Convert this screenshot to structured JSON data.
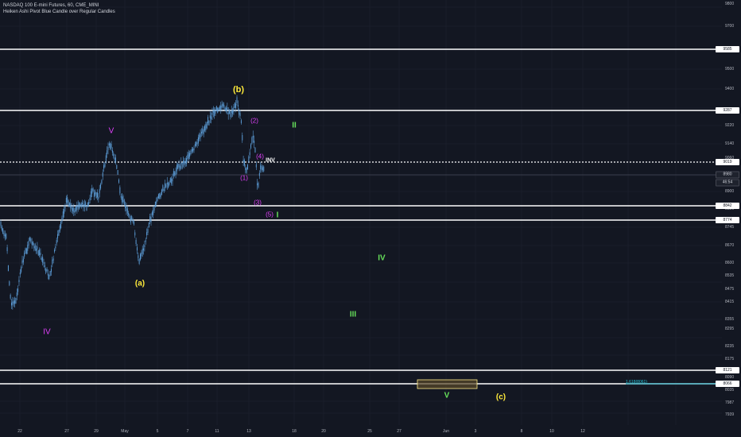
{
  "chart": {
    "symbol_line": "NASDAQ 100 E-mini Futures, 60, CME_MINI",
    "indicator_line": "Heiken Ashi Pivot Blue Candle over Regular Candles"
  },
  "colors": {
    "background": "#131722",
    "candle": "#5b9bd5",
    "grid": "#1f2430",
    "horizontal_line": "#ffffff",
    "magenta": "#e040fb",
    "green": "#66e05a",
    "yellow": "#ffeb3b",
    "fib": "#26c6da",
    "box_fill": "#5a4a2a",
    "box_stroke": "#ffeb8a"
  },
  "y_axis": {
    "ticks": [
      "9800",
      "9700",
      "9500",
      "9400",
      "9220",
      "9140",
      "9060",
      "8900",
      "8820",
      "8745",
      "8670",
      "8600",
      "8535",
      "8475",
      "8415",
      "8355",
      "8295",
      "8235",
      "8175",
      "8090",
      "8035",
      "7987",
      "7939"
    ]
  },
  "price_badges": [
    {
      "label": "9585",
      "style": "light"
    },
    {
      "label": "9287",
      "style": "light"
    },
    {
      "label": "9019",
      "style": "light"
    },
    {
      "label": "8980",
      "style": "dark"
    },
    {
      "label": "46:54",
      "style": "dark"
    },
    {
      "label": "8842",
      "style": "light"
    },
    {
      "label": "8774",
      "style": "light"
    },
    {
      "label": "8121",
      "style": "light"
    },
    {
      "label": "8066",
      "style": "light"
    }
  ],
  "x_axis": {
    "ticks": [
      "22",
      "27",
      "29",
      "May",
      "5",
      "7",
      "11",
      "13",
      "18",
      "20",
      "25",
      "27",
      "Jun",
      "3",
      "8",
      "10",
      "12"
    ]
  },
  "wave_labels": [
    {
      "text": "(b)",
      "color": "yellow"
    },
    {
      "text": "V",
      "color": "magenta"
    },
    {
      "text": "(2)",
      "color": "magenta"
    },
    {
      "text": "II",
      "color": "green"
    },
    {
      "text": "(4)",
      "color": "magenta"
    },
    {
      "text": "INV",
      "color": "white"
    },
    {
      "text": "(1)",
      "color": "magenta"
    },
    {
      "text": "(3)",
      "color": "magenta"
    },
    {
      "text": "(5)",
      "color": "magenta"
    },
    {
      "text": "I",
      "color": "green"
    },
    {
      "text": "IV",
      "color": "green"
    },
    {
      "text": "(a)",
      "color": "yellow"
    },
    {
      "text": "III",
      "color": "green"
    },
    {
      "text": "IV",
      "color": "magenta"
    },
    {
      "text": "V",
      "color": "green"
    },
    {
      "text": "(c)",
      "color": "yellow"
    }
  ],
  "fib_label": "1.618(8061)",
  "chart_data": {
    "type": "candlestick",
    "title": "NASDAQ 100 E-mini Futures, 60, CME_MINI",
    "x": [
      "22",
      "27",
      "29",
      "May",
      "5",
      "7",
      "11",
      "13"
    ],
    "price_path": [
      8760,
      8380,
      8870,
      8880,
      8770,
      9140,
      8790,
      8600,
      8790,
      9200,
      9290,
      9000,
      9215,
      8890,
      9050,
      8980
    ],
    "horizontal_levels": [
      9585,
      9287,
      8842,
      8774,
      8121,
      8066
    ],
    "dotted_level": 9019,
    "last_price": 8980,
    "fib_extension": 8061,
    "ylim": [
      7920,
      9820
    ],
    "grid": true
  }
}
